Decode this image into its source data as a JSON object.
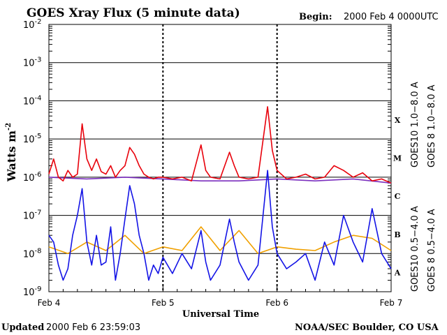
{
  "header": {
    "title": "GOES Xray Flux (5 minute data)",
    "begin_label": "Begin:",
    "begin_value": "2000 Feb 4 0000UTC"
  },
  "footer": {
    "updated_label": "Updated",
    "updated_value": "2000 Feb  6 23:59:03",
    "source": "NOAA/SEC Boulder, CO USA"
  },
  "colors": {
    "goes10_long": "#7b2fbe",
    "goes8_long": "#e8000b",
    "goes10_short": "#f0a000",
    "goes8_short": "#1414e6"
  },
  "chart_data": {
    "type": "line",
    "title": "GOES Xray Flux (5 minute data)",
    "xlabel": "Universal Time",
    "ylabel": "Watts m",
    "ylabel_sup": "-2",
    "yscale": "log",
    "ylim": [
      1e-09,
      0.01
    ],
    "xlim": [
      "2000-02-04T00:00",
      "2000-02-07T00:00"
    ],
    "x_ticks": [
      "Feb 4",
      "Feb 5",
      "Feb 6",
      "Feb 7"
    ],
    "y_ticks": [
      {
        "base": "10",
        "exp": "-2"
      },
      {
        "base": "10",
        "exp": "-3"
      },
      {
        "base": "10",
        "exp": "-4"
      },
      {
        "base": "10",
        "exp": "-5"
      },
      {
        "base": "10",
        "exp": "-6"
      },
      {
        "base": "10",
        "exp": "-7"
      },
      {
        "base": "10",
        "exp": "-8"
      },
      {
        "base": "10",
        "exp": "-9"
      }
    ],
    "flare_classes": [
      "X",
      "M",
      "C",
      "B",
      "A"
    ],
    "grid": true,
    "series": [
      {
        "name": "GOES 8 1.0−8.0 A",
        "color": "#e8000b",
        "x": [
          "2000-02-04T00:00",
          "2000-02-04T01:00",
          "2000-02-04T02:00",
          "2000-02-04T03:00",
          "2000-02-04T04:00",
          "2000-02-04T05:00",
          "2000-02-04T06:00",
          "2000-02-04T07:00",
          "2000-02-04T08:00",
          "2000-02-04T09:00",
          "2000-02-04T10:00",
          "2000-02-04T11:00",
          "2000-02-04T12:00",
          "2000-02-04T13:00",
          "2000-02-04T14:00",
          "2000-02-04T15:00",
          "2000-02-04T16:00",
          "2000-02-04T17:00",
          "2000-02-04T18:00",
          "2000-02-04T19:00",
          "2000-02-04T20:00",
          "2000-02-04T21:00",
          "2000-02-04T22:00",
          "2000-02-04T23:00",
          "2000-02-05T00:00",
          "2000-02-05T02:00",
          "2000-02-05T04:00",
          "2000-02-05T06:00",
          "2000-02-05T08:00",
          "2000-02-05T09:00",
          "2000-02-05T10:00",
          "2000-02-05T12:00",
          "2000-02-05T14:00",
          "2000-02-05T15:00",
          "2000-02-05T16:00",
          "2000-02-05T18:00",
          "2000-02-05T20:00",
          "2000-02-05T22:00",
          "2000-02-05T23:00",
          "2000-02-06T00:00",
          "2000-02-06T02:00",
          "2000-02-06T04:00",
          "2000-02-06T06:00",
          "2000-02-06T08:00",
          "2000-02-06T10:00",
          "2000-02-06T12:00",
          "2000-02-06T14:00",
          "2000-02-06T16:00",
          "2000-02-06T18:00",
          "2000-02-06T20:00",
          "2000-02-06T22:00",
          "2000-02-07T00:00"
        ],
        "y": [
          1.2e-06,
          3e-06,
          1e-06,
          8e-07,
          1.5e-06,
          1e-06,
          1.2e-06,
          2.5e-05,
          3e-06,
          1.5e-06,
          3e-06,
          1.4e-06,
          1.2e-06,
          2e-06,
          1e-06,
          1.5e-06,
          2e-06,
          6e-06,
          4e-06,
          2e-06,
          1.2e-06,
          1e-06,
          9e-07,
          1e-06,
          1e-06,
          9e-07,
          1e-06,
          8e-07,
          7e-06,
          1.5e-06,
          1e-06,
          9e-07,
          4.5e-06,
          2e-06,
          1e-06,
          9e-07,
          1e-06,
          7e-05,
          5e-06,
          1.5e-06,
          9e-07,
          1e-06,
          1.2e-06,
          9e-07,
          1e-06,
          2e-06,
          1.5e-06,
          1e-06,
          1.3e-06,
          8e-07,
          9e-07,
          7e-07
        ]
      },
      {
        "name": "GOES 8 0.5−4.0 A",
        "color": "#1414e6",
        "x": [
          "2000-02-04T00:00",
          "2000-02-04T01:00",
          "2000-02-04T02:00",
          "2000-02-04T03:00",
          "2000-02-04T04:00",
          "2000-02-04T05:00",
          "2000-02-04T06:00",
          "2000-02-04T07:00",
          "2000-02-04T08:00",
          "2000-02-04T09:00",
          "2000-02-04T10:00",
          "2000-02-04T11:00",
          "2000-02-04T12:00",
          "2000-02-04T13:00",
          "2000-02-04T14:00",
          "2000-02-04T15:00",
          "2000-02-04T16:00",
          "2000-02-04T17:00",
          "2000-02-04T18:00",
          "2000-02-04T19:00",
          "2000-02-04T20:00",
          "2000-02-04T21:00",
          "2000-02-04T22:00",
          "2000-02-04T23:00",
          "2000-02-05T00:00",
          "2000-02-05T02:00",
          "2000-02-05T04:00",
          "2000-02-05T06:00",
          "2000-02-05T08:00",
          "2000-02-05T09:00",
          "2000-02-05T10:00",
          "2000-02-05T12:00",
          "2000-02-05T14:00",
          "2000-02-05T15:00",
          "2000-02-05T16:00",
          "2000-02-05T18:00",
          "2000-02-05T20:00",
          "2000-02-05T22:00",
          "2000-02-05T23:00",
          "2000-02-06T00:00",
          "2000-02-06T02:00",
          "2000-02-06T04:00",
          "2000-02-06T06:00",
          "2000-02-06T08:00",
          "2000-02-06T10:00",
          "2000-02-06T12:00",
          "2000-02-06T14:00",
          "2000-02-06T16:00",
          "2000-02-06T18:00",
          "2000-02-06T20:00",
          "2000-02-06T22:00",
          "2000-02-07T00:00"
        ],
        "y": [
          3e-08,
          2e-08,
          5e-09,
          2e-09,
          4e-09,
          3e-08,
          1e-07,
          5e-07,
          2e-08,
          5e-09,
          3e-08,
          5e-09,
          6e-09,
          5e-08,
          2e-09,
          1e-08,
          8e-08,
          6e-07,
          2e-07,
          3e-08,
          1e-08,
          2e-09,
          5e-09,
          3e-09,
          8e-09,
          3e-09,
          1e-08,
          4e-09,
          4e-08,
          6e-09,
          2e-09,
          5e-09,
          8e-08,
          2e-08,
          6e-09,
          2e-09,
          5e-09,
          1.5e-06,
          5e-08,
          1e-08,
          4e-09,
          6e-09,
          1e-08,
          2e-09,
          2e-08,
          5e-09,
          1e-07,
          2e-08,
          6e-09,
          1.5e-07,
          1e-08,
          4e-09
        ]
      },
      {
        "name": "GOES10 0.5−4.0 A",
        "color": "#f0a000",
        "x": [
          "2000-02-04T00:00",
          "2000-02-04T04:00",
          "2000-02-04T08:00",
          "2000-02-04T12:00",
          "2000-02-04T16:00",
          "2000-02-04T20:00",
          "2000-02-05T00:00",
          "2000-02-05T04:00",
          "2000-02-05T08:00",
          "2000-02-05T12:00",
          "2000-02-05T16:00",
          "2000-02-05T20:00",
          "2000-02-06T00:00",
          "2000-02-06T04:00",
          "2000-02-06T08:00",
          "2000-02-06T12:00",
          "2000-02-06T16:00",
          "2000-02-06T20:00",
          "2000-02-07T00:00"
        ],
        "y": [
          1.5e-08,
          1e-08,
          2e-08,
          1.2e-08,
          3e-08,
          1e-08,
          1.5e-08,
          1.2e-08,
          5e-08,
          1.2e-08,
          4e-08,
          1e-08,
          1.5e-08,
          1.3e-08,
          1.2e-08,
          2e-08,
          3e-08,
          2.5e-08,
          1.2e-08
        ]
      },
      {
        "name": "GOES10 1.0−8.0 A",
        "color": "#7b2fbe",
        "x": [
          "2000-02-04T00:00",
          "2000-02-04T08:00",
          "2000-02-04T16:00",
          "2000-02-05T00:00",
          "2000-02-05T08:00",
          "2000-02-05T16:00",
          "2000-02-06T00:00",
          "2000-02-06T08:00",
          "2000-02-06T16:00",
          "2000-02-07T00:00"
        ],
        "y": [
          1e-06,
          9e-07,
          1e-06,
          9e-07,
          8e-07,
          8e-07,
          9e-07,
          8e-07,
          9e-07,
          7e-07
        ]
      }
    ]
  }
}
